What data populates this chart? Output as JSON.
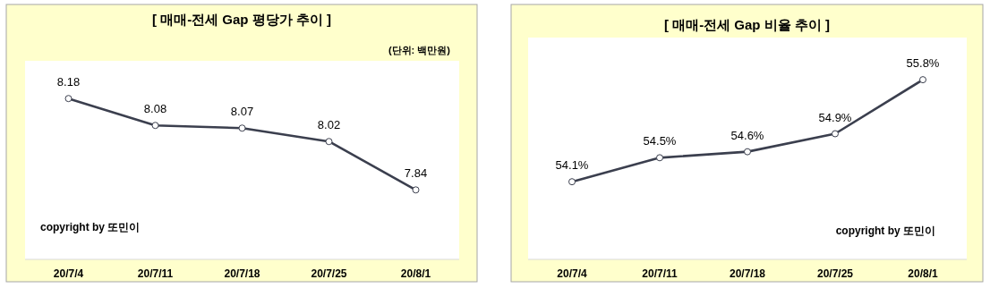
{
  "chart_data": [
    {
      "type": "line",
      "title": "[ 매매-전세 Gap 평당가 추이 ]",
      "subtitle": "(단위: 백만원)",
      "categories": [
        "20/7/4",
        "20/7/11",
        "20/7/18",
        "20/7/25",
        "20/8/1"
      ],
      "values": [
        8.18,
        8.08,
        8.07,
        8.02,
        7.84
      ],
      "color": "#3b3f4e",
      "marker": "circle",
      "data_labels": true,
      "annotations": [
        "copyright by 또민이"
      ]
    },
    {
      "type": "line",
      "title": "[ 매매-전세 Gap 비율 추이 ]",
      "categories": [
        "20/7/4",
        "20/7/11",
        "20/7/18",
        "20/7/25",
        "20/8/1"
      ],
      "values": [
        54.1,
        54.5,
        54.6,
        54.9,
        55.8
      ],
      "value_labels": [
        "54.1%",
        "54.5%",
        "54.6%",
        "54.9%",
        "55.8%"
      ],
      "color": "#3b3f4e",
      "marker": "circle",
      "annotations": [
        "copyright by 또민이"
      ]
    }
  ]
}
